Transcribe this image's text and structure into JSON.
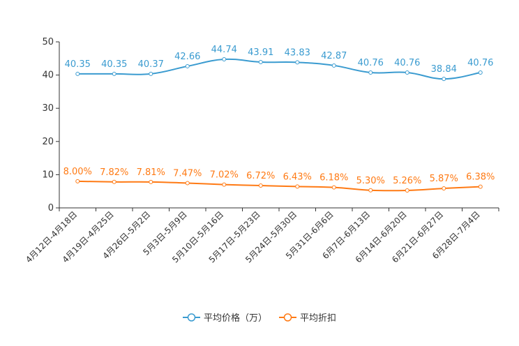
{
  "chart_data": {
    "type": "line",
    "title": "",
    "xlabel": "",
    "ylabel": "",
    "ylim": [
      0,
      50
    ],
    "yticks": [
      0,
      10,
      20,
      30,
      40,
      50
    ],
    "categories": [
      "4月12日-4月18日",
      "4月19日-4月25日",
      "4月26日-5月2日",
      "5月3日-5月9日",
      "5月10日-5月16日",
      "5月17日-5月23日",
      "5月24日-5月30日",
      "5月31日-6月6日",
      "6月7日-6月13日",
      "6月14日-6月20日",
      "6月21日-6月27日",
      "6月28日-7月4日"
    ],
    "series": [
      {
        "name": "平均价格（万）",
        "color": "#3a9bd0",
        "values": [
          40.35,
          40.35,
          40.37,
          42.66,
          44.74,
          43.91,
          43.83,
          42.87,
          40.76,
          40.76,
          38.84,
          40.76
        ],
        "labels": [
          "40.35",
          "40.35",
          "40.37",
          "42.66",
          "44.74",
          "43.91",
          "43.83",
          "42.87",
          "40.76",
          "40.76",
          "38.84",
          "40.76"
        ]
      },
      {
        "name": "平均折扣",
        "color": "#ff7a14",
        "values": [
          8.0,
          7.82,
          7.81,
          7.47,
          7.02,
          6.72,
          6.43,
          6.18,
          5.3,
          5.26,
          5.87,
          6.38
        ],
        "labels": [
          "8.00%",
          "7.82%",
          "7.81%",
          "7.47%",
          "7.02%",
          "6.72%",
          "6.43%",
          "6.18%",
          "5.30%",
          "5.26%",
          "5.87%",
          "6.38%"
        ]
      }
    ],
    "legend": "bottom-center"
  }
}
